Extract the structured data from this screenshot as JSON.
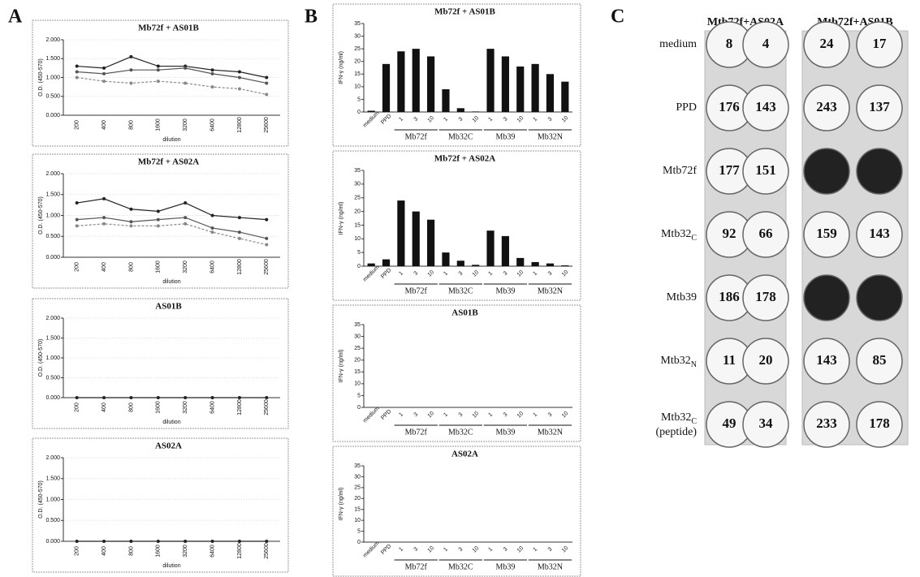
{
  "panel_labels": [
    "A",
    "B",
    "C"
  ],
  "chart_data": [
    {
      "type": "line",
      "title": "Mb72f + AS01B",
      "x_label": "dilution",
      "y_label": "O.D. (450-570)",
      "categories": [
        "200",
        "400",
        "800",
        "1600",
        "3200",
        "6400",
        "12800",
        "25600"
      ],
      "ylim": [
        0,
        2
      ],
      "yticks": [
        {
          "value": 0,
          "label": "0.000"
        },
        {
          "value": 0.5,
          "label": "0.500"
        },
        {
          "value": 1,
          "label": "1.000"
        },
        {
          "value": 1.5,
          "label": "1.500"
        },
        {
          "value": 2,
          "label": "2.000"
        }
      ],
      "grid": true,
      "series": [
        {
          "color": "#222",
          "values": [
            1.3,
            1.25,
            1.55,
            1.3,
            1.3,
            1.2,
            1.15,
            1.0
          ]
        },
        {
          "color": "#555",
          "values": [
            1.15,
            1.1,
            1.2,
            1.2,
            1.25,
            1.1,
            1.0,
            0.85
          ]
        },
        {
          "color": "#888",
          "values": [
            1.0,
            0.9,
            0.85,
            0.9,
            0.85,
            0.75,
            0.7,
            0.55
          ]
        }
      ]
    },
    {
      "type": "line",
      "title": "Mb72f + AS02A",
      "x_label": "dilution",
      "y_label": "O.D. (450-570)",
      "categories": [
        "200",
        "400",
        "800",
        "1600",
        "3200",
        "6400",
        "12800",
        "25600"
      ],
      "ylim": [
        0,
        2
      ],
      "yticks": [
        {
          "value": 0,
          "label": "0.000"
        },
        {
          "value": 0.5,
          "label": "0.500"
        },
        {
          "value": 1,
          "label": "1.000"
        },
        {
          "value": 1.5,
          "label": "1.500"
        },
        {
          "value": 2,
          "label": "2.000"
        }
      ],
      "grid": true,
      "series": [
        {
          "color": "#222",
          "values": [
            1.3,
            1.4,
            1.15,
            1.1,
            1.3,
            1.0,
            0.95,
            0.9
          ]
        },
        {
          "color": "#555",
          "values": [
            0.9,
            0.95,
            0.85,
            0.9,
            0.95,
            0.7,
            0.6,
            0.45
          ]
        },
        {
          "color": "#888",
          "values": [
            0.75,
            0.8,
            0.75,
            0.75,
            0.8,
            0.6,
            0.45,
            0.3
          ]
        }
      ]
    },
    {
      "type": "line",
      "title": "AS01B",
      "x_label": "dilution",
      "y_label": "O.D. (450-570)",
      "categories": [
        "200",
        "400",
        "800",
        "1600",
        "3200",
        "6400",
        "12800",
        "25600"
      ],
      "ylim": [
        0,
        2
      ],
      "yticks": [
        {
          "value": 0,
          "label": "0.000"
        },
        {
          "value": 0.5,
          "label": "0.500"
        },
        {
          "value": 1,
          "label": "1.000"
        },
        {
          "value": 1.5,
          "label": "1.500"
        },
        {
          "value": 2,
          "label": "2.000"
        }
      ],
      "grid": true,
      "series": [
        {
          "color": "#222",
          "values": [
            0,
            0,
            0,
            0,
            0,
            0,
            0,
            0
          ]
        }
      ]
    },
    {
      "type": "line",
      "title": "AS02A",
      "x_label": "dilution",
      "y_label": "O.D. (450-570)",
      "categories": [
        "200",
        "400",
        "800",
        "1600",
        "3200",
        "6400",
        "12800",
        "25600"
      ],
      "ylim": [
        0,
        2
      ],
      "yticks": [
        {
          "value": 0,
          "label": "0.000"
        },
        {
          "value": 0.5,
          "label": "0.500"
        },
        {
          "value": 1,
          "label": "1.000"
        },
        {
          "value": 1.5,
          "label": "1.500"
        },
        {
          "value": 2,
          "label": "2.000"
        }
      ],
      "grid": true,
      "series": [
        {
          "color": "#222",
          "values": [
            0,
            0,
            0,
            0,
            0,
            0,
            0,
            0
          ]
        }
      ]
    },
    {
      "type": "bar",
      "title": "Mb72f + AS01B",
      "y_label": "IFN-γ (ng/ml)",
      "color": "#111",
      "categories": [
        "medium",
        "PPD",
        "1",
        "3",
        "10",
        "1",
        "3",
        "10",
        "1",
        "3",
        "10",
        "1",
        "3",
        "10"
      ],
      "group_labels": [
        "Mb72f",
        "Mb32C",
        "Mb39",
        "Mb32N"
      ],
      "values": [
        0.5,
        19,
        24,
        25,
        22,
        9,
        1.5,
        0.2,
        25,
        22,
        18,
        19,
        15,
        12
      ],
      "ylim": [
        0,
        35
      ],
      "yticks": [
        0,
        5,
        10,
        15,
        20,
        25,
        30,
        35
      ]
    },
    {
      "type": "bar",
      "title": "Mb72f + AS02A",
      "y_label": "IFN-γ (ng/ml)",
      "color": "#111",
      "categories": [
        "medium",
        "PPD",
        "1",
        "3",
        "10",
        "1",
        "3",
        "10",
        "1",
        "3",
        "10",
        "1",
        "3",
        "10"
      ],
      "group_labels": [
        "Mb72f",
        "Mb32C",
        "Mb39",
        "Mb32N"
      ],
      "values": [
        1,
        2.5,
        24,
        20,
        17,
        5,
        2,
        0.5,
        13,
        11,
        3,
        1.5,
        1,
        0.3
      ],
      "ylim": [
        0,
        35
      ],
      "yticks": [
        0,
        5,
        10,
        15,
        20,
        25,
        30,
        35
      ]
    },
    {
      "type": "bar",
      "title": "AS01B",
      "y_label": "IFN-γ (ng/ml)",
      "color": "#111",
      "categories": [
        "medium",
        "PPD",
        "1",
        "3",
        "10",
        "1",
        "3",
        "10",
        "1",
        "3",
        "10",
        "1",
        "3",
        "10"
      ],
      "group_labels": [
        "Mb72f",
        "Mb32C",
        "Mb39",
        "Mb32N"
      ],
      "values": [
        0,
        0,
        0,
        0,
        0,
        0,
        0,
        0,
        0,
        0,
        0,
        0,
        0,
        0
      ],
      "ylim": [
        0,
        35
      ],
      "yticks": [
        0,
        5,
        10,
        15,
        20,
        25,
        30,
        35
      ]
    },
    {
      "type": "bar",
      "title": "AS02A",
      "y_label": "IFN-γ (ng/ml)",
      "color": "#111",
      "categories": [
        "medium",
        "PPD",
        "1",
        "3",
        "10",
        "1",
        "3",
        "10",
        "1",
        "3",
        "10",
        "1",
        "3",
        "10"
      ],
      "group_labels": [
        "Mb72f",
        "Mb32C",
        "Mb39",
        "Mb32N"
      ],
      "values": [
        0,
        0,
        0,
        0,
        0,
        0,
        0,
        0,
        0,
        0,
        0,
        0,
        0,
        0
      ],
      "ylim": [
        0,
        35
      ],
      "yticks": [
        0,
        5,
        10,
        15,
        20,
        25,
        30,
        35
      ]
    }
  ],
  "elispot": {
    "columns": [
      "Mtb72f+AS02A",
      "Mtb72f+AS01B"
    ],
    "rows": [
      {
        "label": "medium",
        "counts": [
          8,
          4,
          24,
          17
        ]
      },
      {
        "label": "PPD",
        "counts": [
          176,
          143,
          243,
          137
        ]
      },
      {
        "label": "Mtb72f",
        "counts": [
          177,
          151,
          null,
          null
        ]
      },
      {
        "label": "Mtb32",
        "sub": "C",
        "counts": [
          92,
          66,
          159,
          143
        ]
      },
      {
        "label": "Mtb39",
        "counts": [
          186,
          178,
          null,
          null
        ]
      },
      {
        "label": "Mtb32",
        "sub": "N",
        "counts": [
          11,
          20,
          143,
          85
        ]
      },
      {
        "label": "Mtb32",
        "sub": "C",
        "note": "(peptide)",
        "counts": [
          49,
          34,
          233,
          178
        ]
      }
    ]
  }
}
